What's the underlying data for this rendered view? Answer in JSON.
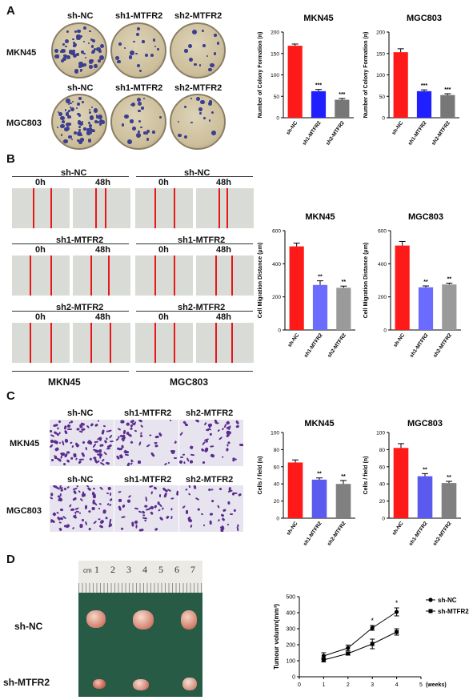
{
  "panels": {
    "A": "A",
    "B": "B",
    "C": "C",
    "D": "D"
  },
  "panel_a": {
    "col_labels": [
      "sh-NC",
      "sh1-MTFR2",
      "sh2-MTFR2"
    ],
    "row_labels": [
      "MKN45",
      "MGC803"
    ]
  },
  "panel_b": {
    "left_group": "MKN45",
    "right_group": "MGC803",
    "conditions": [
      "sh-NC",
      "sh1-MTFR2",
      "sh2-MTFR2"
    ],
    "times": [
      "0h",
      "48h"
    ]
  },
  "panel_c": {
    "col_labels": [
      "sh-NC",
      "sh1-MTFR2",
      "sh2-MTFR2"
    ],
    "row_labels": [
      "MKN45",
      "MGC803"
    ]
  },
  "panel_d": {
    "ruler_unit": "cm",
    "ruler_ticks": [
      "1",
      "2",
      "3",
      "4",
      "5",
      "6",
      "7"
    ],
    "row_labels": [
      "sh-NC",
      "sh-MTFR2"
    ]
  },
  "chart_data": [
    {
      "type": "bar",
      "title": "MKN45",
      "ylabel": "Number of Colony Formation (n)",
      "categories": [
        "sh-NC",
        "sh1-MTFR2",
        "sh2-MTFR2"
      ],
      "values": [
        168,
        62,
        42
      ],
      "errors": [
        4,
        4,
        3
      ],
      "yticks": [
        "0",
        "50",
        "100",
        "150",
        "200"
      ],
      "ylim": [
        0,
        200
      ],
      "annotations": [
        "",
        "***",
        "***"
      ],
      "colors": [
        "#ff1a1a",
        "#1f1fff",
        "#777777"
      ]
    },
    {
      "type": "bar",
      "title": "MGC803",
      "ylabel": "Number of Colony Formation (n)",
      "categories": [
        "sh-NC",
        "sh1-MTFR2",
        "sh2-MTFR2"
      ],
      "values": [
        153,
        62,
        53
      ],
      "errors": [
        8,
        3,
        3
      ],
      "yticks": [
        "0",
        "50",
        "100",
        "150",
        "200"
      ],
      "ylim": [
        0,
        200
      ],
      "annotations": [
        "",
        "***",
        "***"
      ],
      "colors": [
        "#ff1a1a",
        "#1f1fff",
        "#777777"
      ]
    },
    {
      "type": "bar",
      "title": "MKN45",
      "ylabel": "Cell  Migration  Distance (μm)",
      "categories": [
        "sh-NC",
        "sh1-MTFR2",
        "sh2-MTFR2"
      ],
      "values": [
        505,
        272,
        255
      ],
      "errors": [
        20,
        25,
        10
      ],
      "yticks": [
        "0",
        "200",
        "400",
        "600"
      ],
      "ylim": [
        0,
        600
      ],
      "annotations": [
        "",
        "**",
        "**"
      ],
      "colors": [
        "#ff1a1a",
        "#6b6bff",
        "#9a9a9a"
      ]
    },
    {
      "type": "bar",
      "title": "MGC803",
      "ylabel": "Cell  Migration  Distance (μm)",
      "categories": [
        "sh-NC",
        "sh1-MTFR2",
        "sh2-MTFR2"
      ],
      "values": [
        510,
        258,
        275
      ],
      "errors": [
        25,
        8,
        8
      ],
      "yticks": [
        "0",
        "200",
        "400",
        "600"
      ],
      "ylim": [
        0,
        600
      ],
      "annotations": [
        "",
        "**",
        "**"
      ],
      "colors": [
        "#ff1a1a",
        "#6b6bff",
        "#9a9a9a"
      ]
    },
    {
      "type": "bar",
      "title": "MKN45",
      "ylabel": "Cells / field (n)",
      "categories": [
        "sh-NC",
        "sh1-MTFR2",
        "sh2-MTFR2"
      ],
      "values": [
        65,
        45,
        40
      ],
      "errors": [
        3,
        2,
        4
      ],
      "yticks": [
        "0",
        "20",
        "40",
        "60",
        "80",
        "100"
      ],
      "ylim": [
        0,
        100
      ],
      "annotations": [
        "",
        "**",
        "**"
      ],
      "colors": [
        "#ff1a1a",
        "#5a5aee",
        "#808080"
      ]
    },
    {
      "type": "bar",
      "title": "MGC803",
      "ylabel": "Cells / field (n)",
      "categories": [
        "sh-NC",
        "sh1-MTFR2",
        "sh2-MTFR2"
      ],
      "values": [
        82,
        49,
        41
      ],
      "errors": [
        5,
        3,
        2
      ],
      "yticks": [
        "0",
        "20",
        "40",
        "60",
        "80",
        "100"
      ],
      "ylim": [
        0,
        100
      ],
      "annotations": [
        "",
        "**",
        "**"
      ],
      "colors": [
        "#ff1a1a",
        "#5a5aee",
        "#808080"
      ]
    },
    {
      "type": "line",
      "ylabel": "Tumour volumn(mm³)",
      "xlabel": "(weeks)",
      "x": [
        1,
        2,
        3,
        4
      ],
      "xticks": [
        "0",
        "1",
        "2",
        "3",
        "4",
        "5"
      ],
      "xlim": [
        0,
        5
      ],
      "yticks": [
        "0",
        "100",
        "200",
        "300",
        "400",
        "500"
      ],
      "ylim": [
        0,
        500
      ],
      "series": [
        {
          "name": "sh-NC",
          "values": [
            130,
            180,
            305,
            405
          ],
          "errors": [
            20,
            18,
            15,
            25
          ],
          "marker": "circle"
        },
        {
          "name": "sh-MTFR2",
          "values": [
            105,
            145,
            205,
            280
          ],
          "errors": [
            12,
            10,
            30,
            20
          ],
          "marker": "square"
        }
      ],
      "annotations": [
        {
          "x": 3,
          "text": "*"
        },
        {
          "x": 4,
          "text": "*"
        }
      ]
    }
  ]
}
